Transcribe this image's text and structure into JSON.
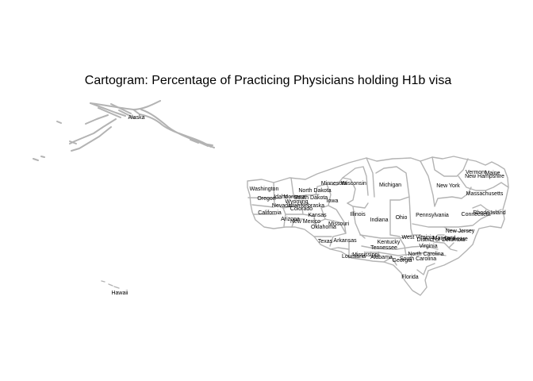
{
  "title": "Cartogram: Percentage of Practicing Physicians holding H1b visa",
  "colors": {
    "outline": "#b3b3b3",
    "text": "#000000",
    "background": "#ffffff"
  },
  "labels": {
    "alaska": "Alaska",
    "hawaii": "Hawaii",
    "washington": "Washington",
    "oregon": "Oregon",
    "idaho": "Idaho",
    "montana": "Montana",
    "wyoming": "Wyoming",
    "nevada": "Nevada",
    "utah": "Utah",
    "colorado": "Colorado",
    "california": "California",
    "arizona": "Arizona",
    "new_mexico": "New Mexico",
    "north_dakota": "North Dakota",
    "south_dakota": "South Dakota",
    "nebraska": "Nebraska",
    "kansas": "Kansas",
    "oklahoma": "Oklahoma",
    "texas": "Texas",
    "minnesota": "Minnesota",
    "iowa": "Iowa",
    "missouri": "Missouri",
    "arkansas": "Arkansas",
    "louisiana": "Louisiana",
    "wisconsin": "Wisconsin",
    "illinois": "Illinois",
    "michigan": "Michigan",
    "indiana": "Indiana",
    "ohio": "Ohio",
    "kentucky": "Kentucky",
    "tennessee": "Tennessee",
    "mississippi": "Mississippi",
    "alabama": "Alabama",
    "georgia": "Georgia",
    "florida": "Florida",
    "south_carolina": "South Carolina",
    "north_carolina": "North Carolina",
    "virginia": "Virginia",
    "west_virginia": "West Virginia",
    "pennsylvania": "Pennsylvania",
    "new_york": "New York",
    "new_jersey": "New Jersey",
    "maryland": "Maryland",
    "delaware": "Delaware",
    "district_of_columbia": "District of Columbia",
    "connecticut": "Connecticut",
    "rhode_island": "Rhode Island",
    "massachusetts": "Massachusetts",
    "vermont": "Vermont",
    "new_hampshire": "New Hampshire",
    "maine": "Maine"
  }
}
